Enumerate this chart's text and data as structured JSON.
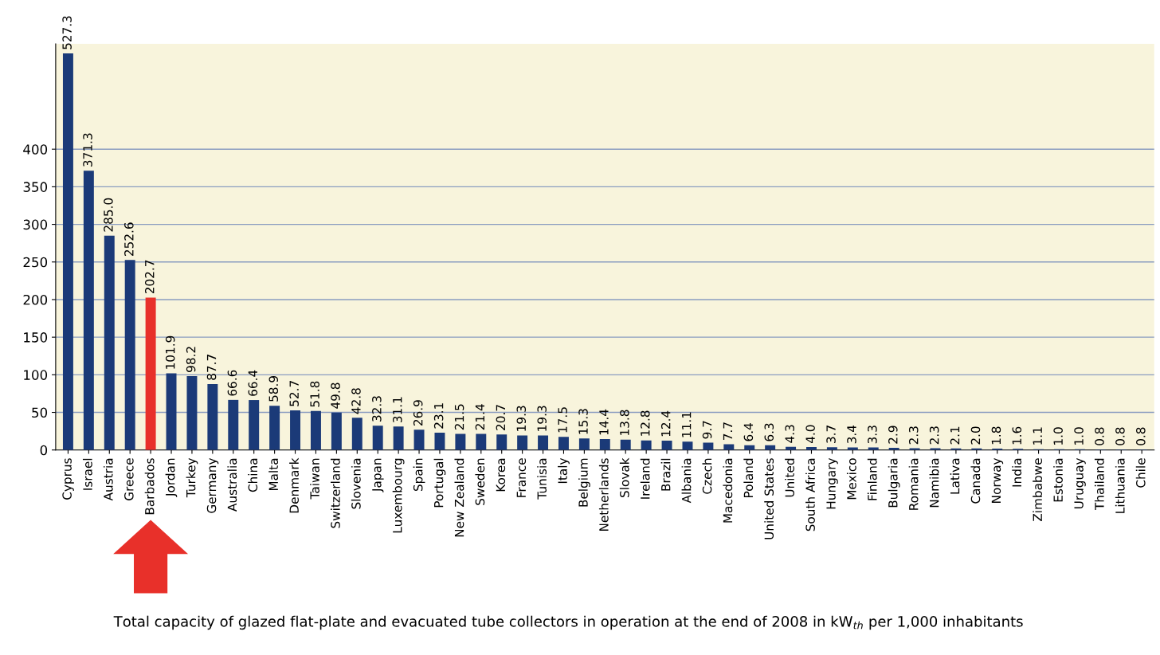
{
  "chart_data": {
    "type": "bar",
    "categories": [
      "Cyprus",
      "Israel",
      "Austria",
      "Greece",
      "Barbados",
      "Jordan",
      "Turkey",
      "Germany",
      "Australia",
      "China",
      "Malta",
      "Denmark",
      "Taiwan",
      "Switzerland",
      "Slovenia",
      "Japan",
      "Luxembourg",
      "Spain",
      "Portugal",
      "New Zealand",
      "Sweden",
      "Korea",
      "France",
      "Tunisia",
      "Italy",
      "Belgium",
      "Netherlands",
      "Slovak",
      "Ireland",
      "Brazil",
      "Albania",
      "Czech",
      "Macedonia",
      "Poland",
      "United States",
      "United",
      "South Africa",
      "Hungary",
      "Mexico",
      "Finland",
      "Bulgaria",
      "Romania",
      "Namibia",
      "Lativa",
      "Canada",
      "Norway",
      "India",
      "Zimbabwe",
      "Estonia",
      "Uruguay",
      "Thailand",
      "Lithuania",
      "Chile"
    ],
    "values": [
      527.3,
      371.3,
      285.0,
      252.6,
      202.7,
      101.9,
      98.2,
      87.7,
      66.6,
      66.4,
      58.9,
      52.7,
      51.8,
      49.8,
      42.8,
      32.3,
      31.1,
      26.9,
      23.1,
      21.5,
      21.4,
      20.7,
      19.3,
      19.3,
      17.5,
      15.3,
      14.4,
      13.8,
      12.8,
      12.4,
      11.1,
      9.7,
      7.7,
      6.4,
      6.3,
      4.3,
      4.0,
      3.7,
      3.4,
      3.3,
      2.9,
      2.3,
      2.3,
      2.1,
      2.0,
      1.8,
      1.6,
      1.1,
      1.0,
      1.0,
      0.8,
      0.8,
      0.8
    ],
    "value_labels": [
      "527.3",
      "371.3",
      "285.0",
      "252.6",
      "202.7",
      "101.9",
      "98.2",
      "87.7",
      "66.6",
      "66.4",
      "58.9",
      "52.7",
      "51.8",
      "49.8",
      "42.8",
      "32.3",
      "31.1",
      "26.9",
      "23.1",
      "21.5",
      "21.4",
      "20.7",
      "19.3",
      "19.3",
      "17.5",
      "15.3",
      "14.4",
      "13.8",
      "12.8",
      "12.4",
      "11.1",
      "9.7",
      "7.7",
      "6.4",
      "6.3",
      "4.3",
      "4.0",
      "3.7",
      "3.4",
      "3.3",
      "2.9",
      "2.3",
      "2.3",
      "2.1",
      "2.0",
      "1.8",
      "1.6",
      "1.1",
      "1.0",
      "1.0",
      "0.8",
      "0.8",
      "0.8"
    ],
    "colors": [
      "#1b3a78",
      "#1b3a78",
      "#1b3a78",
      "#1b3a78",
      "#e8302a",
      "#1b3a78",
      "#1b3a78",
      "#1b3a78",
      "#1b3a78",
      "#1b3a78",
      "#1b3a78",
      "#1b3a78",
      "#1b3a78",
      "#1b3a78",
      "#1b3a78",
      "#1b3a78",
      "#1b3a78",
      "#1b3a78",
      "#1b3a78",
      "#1b3a78",
      "#1b3a78",
      "#1b3a78",
      "#1b3a78",
      "#1b3a78",
      "#1b3a78",
      "#1b3a78",
      "#1b3a78",
      "#1b3a78",
      "#1b3a78",
      "#1b3a78",
      "#1b3a78",
      "#1b3a78",
      "#1b3a78",
      "#1b3a78",
      "#1b3a78",
      "#1b3a78",
      "#1b3a78",
      "#1b3a78",
      "#1b3a78",
      "#1b3a78",
      "#1b3a78",
      "#1b3a78",
      "#1b3a78",
      "#1b3a78",
      "#1b3a78",
      "#1b3a78",
      "#1b3a78",
      "#1b3a78",
      "#1b3a78",
      "#1b3a78",
      "#1b3a78",
      "#1b3a78",
      "#1b3a78"
    ],
    "ylim": [
      0,
      540
    ],
    "yticks": [
      0,
      50,
      100,
      150,
      200,
      250,
      300,
      350,
      400
    ],
    "grid": "y",
    "annotations": [
      "Total capacity of glazed flat-plate and evacuated tube collectors in operation at the end of 2008 in kW$_{th}$ per 1,000 inhabitants"
    ]
  }
}
